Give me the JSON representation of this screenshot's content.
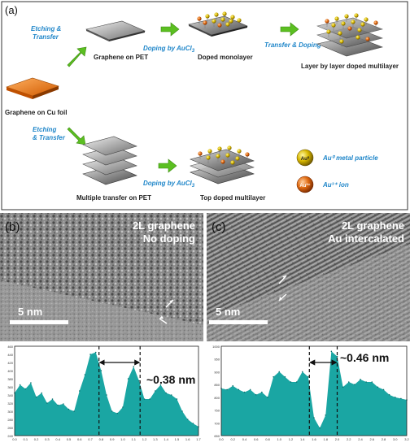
{
  "panel_a": {
    "label": "(a)",
    "steps": {
      "etch1": [
        "Etching &",
        "Transfer"
      ],
      "graphene_pet": "Graphene on PET",
      "doping_auc": "Doping by AuCl",
      "doping_sub": "3",
      "doped_monolayer": "Doped monolayer",
      "transfer_doping": "Transfer & Doping",
      "layer_by_layer": "Layer by layer doped multilayer",
      "graphene_cu": "Graphene on Cu foil",
      "etch2": [
        "Etching",
        "& Transfer"
      ],
      "multiple_transfer": "Multiple transfer on PET",
      "doping_auc2": "Doping by AuCl",
      "doping_sub2": "3",
      "top_doped": "Top doped multilayer"
    },
    "legend": {
      "au0_badge": "Au⁰",
      "au0_label": "Au⁰ metal particle",
      "au3_badge": "Au³⁺",
      "au3_label": "Au³⁺ ion"
    },
    "colors": {
      "arrow": "#5bbf21",
      "blue_text": "#1f86c9",
      "orange": "#f07a10"
    }
  },
  "panel_b": {
    "label": "(b)",
    "title1": "2L graphene",
    "title2": "No doping",
    "scale": "5 nm",
    "spacing": "~0.38 nm",
    "y_ticks": [
      "460",
      "440",
      "420",
      "400",
      "380",
      "360",
      "340",
      "320",
      "300",
      "280",
      "260",
      "240"
    ],
    "x_ticks": [
      "0.0",
      "0.1",
      "0.2",
      "0.3",
      "0.4",
      "0.5",
      "0.6",
      "0.7",
      "0.8",
      "0.9",
      "1.0",
      "1.1",
      "1.2",
      "1.3",
      "1.4",
      "1.5",
      "1.6",
      "1.7"
    ]
  },
  "panel_c": {
    "label": "(c)",
    "title1": "2L graphene",
    "title2": "Au intercalated",
    "scale": "5 nm",
    "spacing": "~0.46 nm",
    "y_ticks": [
      "1000",
      "950",
      "900",
      "850",
      "800",
      "750",
      "700",
      "650"
    ],
    "x_ticks": [
      "0.0",
      "0.2",
      "0.4",
      "0.6",
      "0.8",
      "1.0",
      "1.2",
      "1.4",
      "1.6",
      "1.8",
      "2.0",
      "2.2",
      "2.4",
      "2.6",
      "2.8",
      "3.0",
      "3.2"
    ]
  },
  "chart_data": [
    {
      "type": "area",
      "title": "",
      "xlim": [
        0.0,
        1.7
      ],
      "ylim": [
        240,
        460
      ],
      "x": [
        0.0,
        0.05,
        0.1,
        0.15,
        0.2,
        0.25,
        0.3,
        0.35,
        0.4,
        0.45,
        0.5,
        0.55,
        0.6,
        0.65,
        0.7,
        0.75,
        0.8,
        0.85,
        0.9,
        0.95,
        1.0,
        1.05,
        1.1,
        1.15,
        1.2,
        1.25,
        1.3,
        1.35,
        1.4,
        1.45,
        1.5,
        1.55,
        1.6,
        1.65,
        1.7
      ],
      "series": [
        {
          "values": [
            345,
            365,
            355,
            370,
            335,
            345,
            320,
            330,
            315,
            318,
            305,
            300,
            350,
            390,
            440,
            445,
            400,
            340,
            300,
            295,
            310,
            380,
            410,
            375,
            330,
            330,
            350,
            365,
            345,
            340,
            330,
            300,
            280,
            270,
            262
          ]
        }
      ],
      "markers_x": [
        0.78,
        1.16
      ]
    },
    {
      "type": "area",
      "title": "",
      "xlim": [
        0.0,
        3.2
      ],
      "ylim": [
        650,
        1000
      ],
      "x": [
        0.0,
        0.1,
        0.2,
        0.3,
        0.4,
        0.5,
        0.6,
        0.7,
        0.8,
        0.9,
        1.0,
        1.1,
        1.2,
        1.3,
        1.4,
        1.5,
        1.6,
        1.7,
        1.8,
        1.9,
        2.0,
        2.1,
        2.2,
        2.3,
        2.4,
        2.5,
        2.6,
        2.7,
        2.8,
        2.9,
        3.0,
        3.1,
        3.2
      ],
      "series": [
        {
          "values": [
            835,
            830,
            845,
            830,
            820,
            830,
            810,
            820,
            800,
            880,
            900,
            880,
            860,
            860,
            900,
            880,
            720,
            680,
            730,
            980,
            960,
            840,
            860,
            850,
            870,
            860,
            860,
            840,
            830,
            810,
            800,
            795,
            790
          ]
        }
      ],
      "markers_x": [
        1.52,
        2.0
      ]
    }
  ]
}
